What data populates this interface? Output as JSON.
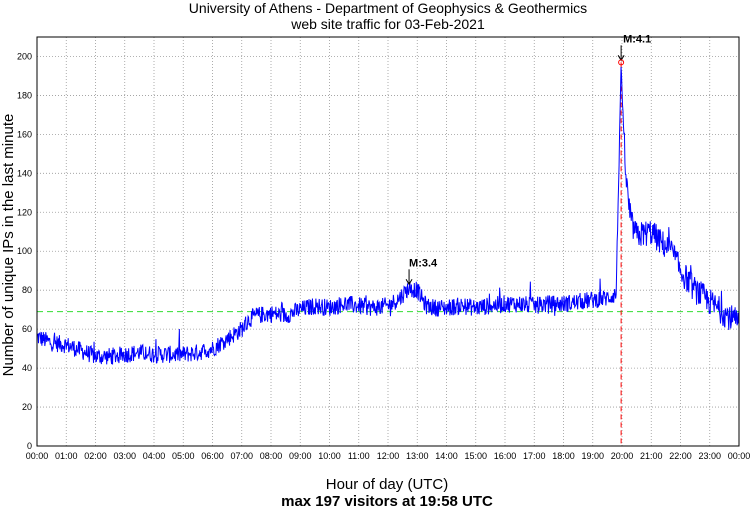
{
  "chart_data": {
    "type": "line",
    "title": "University of Athens - Department of Geophysics & Geothermics",
    "subtitle": "web site traffic for 03-Feb-2021",
    "xlabel": "Hour of day (UTC)",
    "ylabel": "Number of unique IPs in the last minute",
    "footer": "max 197 visitors at 19:58 UTC",
    "xlim": [
      0,
      24
    ],
    "ylim": [
      0,
      210
    ],
    "grid": true,
    "x_ticks": [
      "00:00",
      "01:00",
      "02:00",
      "03:00",
      "04:00",
      "05:00",
      "06:00",
      "07:00",
      "08:00",
      "09:00",
      "10:00",
      "11:00",
      "12:00",
      "13:00",
      "14:00",
      "15:00",
      "16:00",
      "17:00",
      "18:00",
      "19:00",
      "20:00",
      "21:00",
      "22:00",
      "23:00",
      "00:00"
    ],
    "y_ticks": [
      0,
      20,
      40,
      60,
      80,
      100,
      120,
      140,
      160,
      180,
      200
    ],
    "baseline": {
      "value": 69,
      "color": "#33dd33"
    },
    "series": [
      {
        "color": "#0000ff",
        "x": [
          0,
          0.5,
          1,
          1.5,
          2,
          2.5,
          3,
          3.5,
          4,
          4.5,
          5,
          5.5,
          6,
          6.5,
          7,
          7.25,
          7.5,
          8,
          8.5,
          9,
          9.5,
          10,
          10.5,
          11,
          11.5,
          12,
          12.4,
          12.7,
          13,
          13.3,
          13.6,
          14,
          14.5,
          15,
          15.5,
          16,
          16.5,
          17,
          17.5,
          18,
          18.5,
          19,
          19.5,
          19.8,
          19.97,
          20.05,
          20.15,
          20.3,
          20.5,
          21,
          21.3,
          21.7,
          22,
          22.5,
          23,
          23.5,
          24
        ],
        "values": [
          56,
          53,
          52,
          49,
          46,
          46,
          47,
          48,
          47,
          47,
          47,
          48,
          50,
          55,
          60,
          65,
          67,
          68,
          67,
          70,
          72,
          71,
          73,
          72,
          71,
          72,
          76,
          81,
          80,
          72,
          71,
          71,
          72,
          71,
          72,
          73,
          73,
          72,
          73,
          73,
          74,
          75,
          76,
          78,
          197,
          160,
          135,
          115,
          108,
          110,
          105,
          100,
          90,
          80,
          74,
          68,
          63
        ]
      }
    ],
    "events": [
      {
        "label": "M:3.4",
        "x": 12.72,
        "y": 82,
        "color": "#000000"
      },
      {
        "label": "M:4.1",
        "x": 19.97,
        "y": 197,
        "color": "#ff0000"
      }
    ]
  }
}
